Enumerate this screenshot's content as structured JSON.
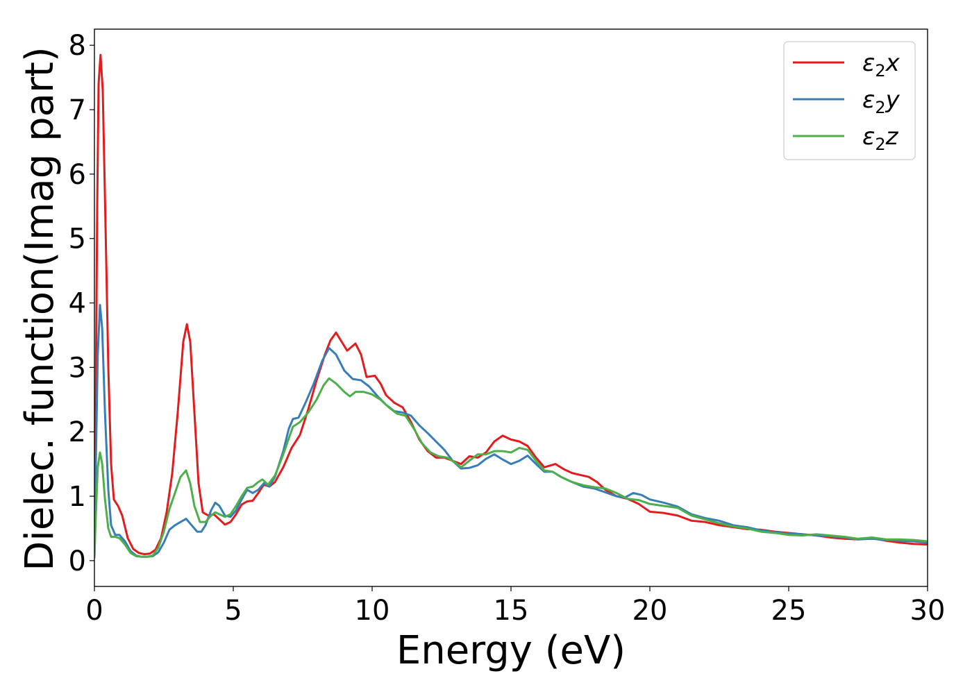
{
  "chart_data": {
    "type": "line",
    "xlabel": "Energy (eV)",
    "ylabel": "Dielec. function(Imag part)",
    "xlim": [
      0,
      30
    ],
    "ylim": [
      -0.4,
      8.25
    ],
    "xticks": [
      0,
      5,
      10,
      15,
      20,
      25,
      30
    ],
    "yticks": [
      0,
      1,
      2,
      3,
      4,
      5,
      6,
      7,
      8
    ],
    "grid": false,
    "legend_position": "top-right",
    "series": [
      {
        "name": "ε₂x",
        "legend_base": "ε",
        "legend_sub": "2",
        "legend_axis": "x",
        "color": "#e41a1c",
        "points": [
          [
            0,
            0.1
          ],
          [
            0.05,
            2.5
          ],
          [
            0.1,
            5.5
          ],
          [
            0.15,
            7.4
          ],
          [
            0.22,
            7.85
          ],
          [
            0.3,
            7.3
          ],
          [
            0.4,
            5.2
          ],
          [
            0.5,
            3.0
          ],
          [
            0.6,
            1.5
          ],
          [
            0.7,
            0.95
          ],
          [
            0.85,
            0.85
          ],
          [
            1.0,
            0.7
          ],
          [
            1.2,
            0.35
          ],
          [
            1.4,
            0.18
          ],
          [
            1.6,
            0.12
          ],
          [
            1.8,
            0.1
          ],
          [
            2.0,
            0.11
          ],
          [
            2.2,
            0.17
          ],
          [
            2.4,
            0.35
          ],
          [
            2.6,
            0.75
          ],
          [
            2.8,
            1.35
          ],
          [
            3.0,
            2.3
          ],
          [
            3.2,
            3.4
          ],
          [
            3.33,
            3.67
          ],
          [
            3.45,
            3.4
          ],
          [
            3.6,
            2.3
          ],
          [
            3.75,
            1.2
          ],
          [
            3.9,
            0.75
          ],
          [
            4.1,
            0.7
          ],
          [
            4.3,
            0.72
          ],
          [
            4.5,
            0.64
          ],
          [
            4.7,
            0.56
          ],
          [
            4.9,
            0.6
          ],
          [
            5.1,
            0.72
          ],
          [
            5.3,
            0.87
          ],
          [
            5.5,
            0.92
          ],
          [
            5.7,
            0.93
          ],
          [
            5.9,
            1.05
          ],
          [
            6.1,
            1.18
          ],
          [
            6.3,
            1.15
          ],
          [
            6.5,
            1.22
          ],
          [
            6.8,
            1.45
          ],
          [
            7.1,
            1.75
          ],
          [
            7.4,
            1.95
          ],
          [
            7.7,
            2.35
          ],
          [
            8.0,
            2.8
          ],
          [
            8.3,
            3.2
          ],
          [
            8.5,
            3.42
          ],
          [
            8.7,
            3.54
          ],
          [
            8.9,
            3.4
          ],
          [
            9.1,
            3.26
          ],
          [
            9.4,
            3.37
          ],
          [
            9.6,
            3.2
          ],
          [
            9.8,
            2.85
          ],
          [
            10.1,
            2.87
          ],
          [
            10.3,
            2.75
          ],
          [
            10.5,
            2.57
          ],
          [
            10.8,
            2.45
          ],
          [
            11.1,
            2.38
          ],
          [
            11.4,
            2.15
          ],
          [
            11.7,
            1.88
          ],
          [
            12.0,
            1.7
          ],
          [
            12.3,
            1.6
          ],
          [
            12.6,
            1.6
          ],
          [
            12.9,
            1.55
          ],
          [
            13.2,
            1.5
          ],
          [
            13.5,
            1.62
          ],
          [
            13.8,
            1.6
          ],
          [
            14.1,
            1.68
          ],
          [
            14.4,
            1.85
          ],
          [
            14.7,
            1.94
          ],
          [
            15.0,
            1.88
          ],
          [
            15.3,
            1.85
          ],
          [
            15.6,
            1.78
          ],
          [
            15.9,
            1.6
          ],
          [
            16.2,
            1.45
          ],
          [
            16.6,
            1.5
          ],
          [
            16.9,
            1.42
          ],
          [
            17.2,
            1.36
          ],
          [
            17.5,
            1.33
          ],
          [
            17.8,
            1.3
          ],
          [
            18.1,
            1.22
          ],
          [
            18.4,
            1.1
          ],
          [
            18.8,
            1.0
          ],
          [
            19.2,
            0.96
          ],
          [
            19.6,
            0.88
          ],
          [
            20.0,
            0.76
          ],
          [
            20.5,
            0.74
          ],
          [
            21.0,
            0.7
          ],
          [
            21.5,
            0.62
          ],
          [
            22.0,
            0.6
          ],
          [
            22.5,
            0.55
          ],
          [
            23.0,
            0.52
          ],
          [
            23.5,
            0.49
          ],
          [
            24.0,
            0.48
          ],
          [
            24.5,
            0.45
          ],
          [
            25.0,
            0.43
          ],
          [
            25.5,
            0.41
          ],
          [
            26.0,
            0.39
          ],
          [
            26.5,
            0.36
          ],
          [
            27.0,
            0.34
          ],
          [
            27.5,
            0.33
          ],
          [
            28.0,
            0.35
          ],
          [
            28.5,
            0.31
          ],
          [
            29.0,
            0.28
          ],
          [
            29.5,
            0.26
          ],
          [
            30.0,
            0.25
          ]
        ]
      },
      {
        "name": "ε₂y",
        "legend_base": "ε",
        "legend_sub": "2",
        "legend_axis": "y",
        "color": "#377eb8",
        "points": [
          [
            0,
            0.05
          ],
          [
            0.05,
            1.5
          ],
          [
            0.12,
            3.2
          ],
          [
            0.2,
            3.97
          ],
          [
            0.28,
            3.6
          ],
          [
            0.38,
            2.3
          ],
          [
            0.5,
            1.1
          ],
          [
            0.6,
            0.55
          ],
          [
            0.75,
            0.4
          ],
          [
            0.9,
            0.4
          ],
          [
            1.1,
            0.3
          ],
          [
            1.3,
            0.15
          ],
          [
            1.5,
            0.08
          ],
          [
            1.7,
            0.06
          ],
          [
            1.9,
            0.06
          ],
          [
            2.1,
            0.07
          ],
          [
            2.3,
            0.13
          ],
          [
            2.5,
            0.28
          ],
          [
            2.7,
            0.48
          ],
          [
            2.9,
            0.55
          ],
          [
            3.1,
            0.6
          ],
          [
            3.3,
            0.65
          ],
          [
            3.5,
            0.55
          ],
          [
            3.7,
            0.45
          ],
          [
            3.85,
            0.45
          ],
          [
            4.0,
            0.55
          ],
          [
            4.2,
            0.78
          ],
          [
            4.35,
            0.9
          ],
          [
            4.5,
            0.85
          ],
          [
            4.7,
            0.7
          ],
          [
            4.9,
            0.68
          ],
          [
            5.1,
            0.78
          ],
          [
            5.3,
            0.95
          ],
          [
            5.5,
            1.1
          ],
          [
            5.7,
            1.05
          ],
          [
            5.9,
            1.1
          ],
          [
            6.1,
            1.2
          ],
          [
            6.3,
            1.15
          ],
          [
            6.5,
            1.3
          ],
          [
            6.8,
            1.7
          ],
          [
            7.0,
            2.05
          ],
          [
            7.15,
            2.2
          ],
          [
            7.35,
            2.22
          ],
          [
            7.6,
            2.45
          ],
          [
            7.9,
            2.75
          ],
          [
            8.2,
            3.1
          ],
          [
            8.45,
            3.3
          ],
          [
            8.7,
            3.2
          ],
          [
            9.0,
            2.95
          ],
          [
            9.3,
            2.82
          ],
          [
            9.6,
            2.8
          ],
          [
            9.9,
            2.7
          ],
          [
            10.2,
            2.55
          ],
          [
            10.5,
            2.42
          ],
          [
            10.8,
            2.32
          ],
          [
            11.1,
            2.3
          ],
          [
            11.4,
            2.25
          ],
          [
            11.7,
            2.1
          ],
          [
            12.0,
            1.98
          ],
          [
            12.3,
            1.85
          ],
          [
            12.6,
            1.72
          ],
          [
            12.9,
            1.55
          ],
          [
            13.2,
            1.43
          ],
          [
            13.5,
            1.44
          ],
          [
            13.8,
            1.48
          ],
          [
            14.1,
            1.58
          ],
          [
            14.4,
            1.65
          ],
          [
            14.7,
            1.57
          ],
          [
            15.0,
            1.5
          ],
          [
            15.3,
            1.55
          ],
          [
            15.6,
            1.63
          ],
          [
            15.9,
            1.5
          ],
          [
            16.2,
            1.38
          ],
          [
            16.5,
            1.38
          ],
          [
            16.8,
            1.3
          ],
          [
            17.2,
            1.22
          ],
          [
            17.6,
            1.15
          ],
          [
            18.0,
            1.12
          ],
          [
            18.4,
            1.06
          ],
          [
            18.8,
            1.0
          ],
          [
            19.1,
            0.98
          ],
          [
            19.4,
            1.05
          ],
          [
            19.7,
            1.02
          ],
          [
            20.0,
            0.95
          ],
          [
            20.5,
            0.9
          ],
          [
            21.0,
            0.84
          ],
          [
            21.5,
            0.72
          ],
          [
            22.0,
            0.66
          ],
          [
            22.5,
            0.62
          ],
          [
            23.0,
            0.55
          ],
          [
            23.5,
            0.52
          ],
          [
            24.0,
            0.47
          ],
          [
            24.5,
            0.44
          ],
          [
            25.0,
            0.42
          ],
          [
            25.5,
            0.41
          ],
          [
            26.0,
            0.39
          ],
          [
            26.5,
            0.38
          ],
          [
            27.0,
            0.36
          ],
          [
            27.5,
            0.33
          ],
          [
            28.0,
            0.34
          ],
          [
            28.5,
            0.32
          ],
          [
            29.0,
            0.31
          ],
          [
            29.5,
            0.3
          ],
          [
            30.0,
            0.28
          ]
        ]
      },
      {
        "name": "ε₂z",
        "legend_base": "ε",
        "legend_sub": "2",
        "legend_axis": "z",
        "color": "#4daf4a",
        "points": [
          [
            0,
            0.05
          ],
          [
            0.05,
            0.7
          ],
          [
            0.12,
            1.45
          ],
          [
            0.2,
            1.68
          ],
          [
            0.28,
            1.5
          ],
          [
            0.38,
            0.95
          ],
          [
            0.5,
            0.5
          ],
          [
            0.6,
            0.37
          ],
          [
            0.75,
            0.37
          ],
          [
            0.9,
            0.35
          ],
          [
            1.1,
            0.25
          ],
          [
            1.3,
            0.12
          ],
          [
            1.5,
            0.07
          ],
          [
            1.7,
            0.06
          ],
          [
            1.9,
            0.06
          ],
          [
            2.1,
            0.08
          ],
          [
            2.3,
            0.2
          ],
          [
            2.5,
            0.45
          ],
          [
            2.7,
            0.8
          ],
          [
            2.9,
            1.05
          ],
          [
            3.1,
            1.3
          ],
          [
            3.3,
            1.4
          ],
          [
            3.45,
            1.2
          ],
          [
            3.6,
            0.85
          ],
          [
            3.8,
            0.6
          ],
          [
            4.0,
            0.6
          ],
          [
            4.2,
            0.7
          ],
          [
            4.35,
            0.75
          ],
          [
            4.5,
            0.72
          ],
          [
            4.7,
            0.68
          ],
          [
            4.9,
            0.72
          ],
          [
            5.1,
            0.85
          ],
          [
            5.3,
            1.0
          ],
          [
            5.5,
            1.13
          ],
          [
            5.7,
            1.15
          ],
          [
            5.9,
            1.22
          ],
          [
            6.05,
            1.26
          ],
          [
            6.25,
            1.18
          ],
          [
            6.5,
            1.32
          ],
          [
            6.8,
            1.65
          ],
          [
            7.0,
            1.9
          ],
          [
            7.15,
            2.08
          ],
          [
            7.4,
            2.15
          ],
          [
            7.7,
            2.3
          ],
          [
            8.0,
            2.5
          ],
          [
            8.25,
            2.72
          ],
          [
            8.45,
            2.83
          ],
          [
            8.7,
            2.75
          ],
          [
            9.0,
            2.62
          ],
          [
            9.2,
            2.55
          ],
          [
            9.4,
            2.62
          ],
          [
            9.7,
            2.62
          ],
          [
            10.0,
            2.58
          ],
          [
            10.3,
            2.5
          ],
          [
            10.6,
            2.38
          ],
          [
            10.9,
            2.28
          ],
          [
            11.2,
            2.25
          ],
          [
            11.5,
            2.05
          ],
          [
            11.8,
            1.82
          ],
          [
            12.1,
            1.68
          ],
          [
            12.4,
            1.62
          ],
          [
            12.7,
            1.6
          ],
          [
            13.0,
            1.52
          ],
          [
            13.2,
            1.45
          ],
          [
            13.5,
            1.55
          ],
          [
            13.8,
            1.65
          ],
          [
            14.1,
            1.65
          ],
          [
            14.4,
            1.7
          ],
          [
            14.7,
            1.7
          ],
          [
            15.0,
            1.68
          ],
          [
            15.3,
            1.75
          ],
          [
            15.6,
            1.72
          ],
          [
            15.9,
            1.55
          ],
          [
            16.2,
            1.4
          ],
          [
            16.5,
            1.38
          ],
          [
            16.8,
            1.3
          ],
          [
            17.2,
            1.22
          ],
          [
            17.6,
            1.17
          ],
          [
            18.0,
            1.14
          ],
          [
            18.4,
            1.12
          ],
          [
            18.8,
            1.05
          ],
          [
            19.2,
            0.96
          ],
          [
            19.6,
            0.94
          ],
          [
            20.0,
            0.88
          ],
          [
            20.5,
            0.85
          ],
          [
            21.0,
            0.82
          ],
          [
            21.5,
            0.7
          ],
          [
            22.0,
            0.64
          ],
          [
            22.5,
            0.58
          ],
          [
            23.0,
            0.53
          ],
          [
            23.5,
            0.5
          ],
          [
            24.0,
            0.45
          ],
          [
            24.5,
            0.43
          ],
          [
            25.0,
            0.4
          ],
          [
            25.5,
            0.39
          ],
          [
            26.0,
            0.41
          ],
          [
            26.5,
            0.39
          ],
          [
            27.0,
            0.37
          ],
          [
            27.5,
            0.34
          ],
          [
            28.0,
            0.36
          ],
          [
            28.5,
            0.33
          ],
          [
            29.0,
            0.33
          ],
          [
            29.5,
            0.32
          ],
          [
            30.0,
            0.3
          ]
        ]
      }
    ]
  }
}
